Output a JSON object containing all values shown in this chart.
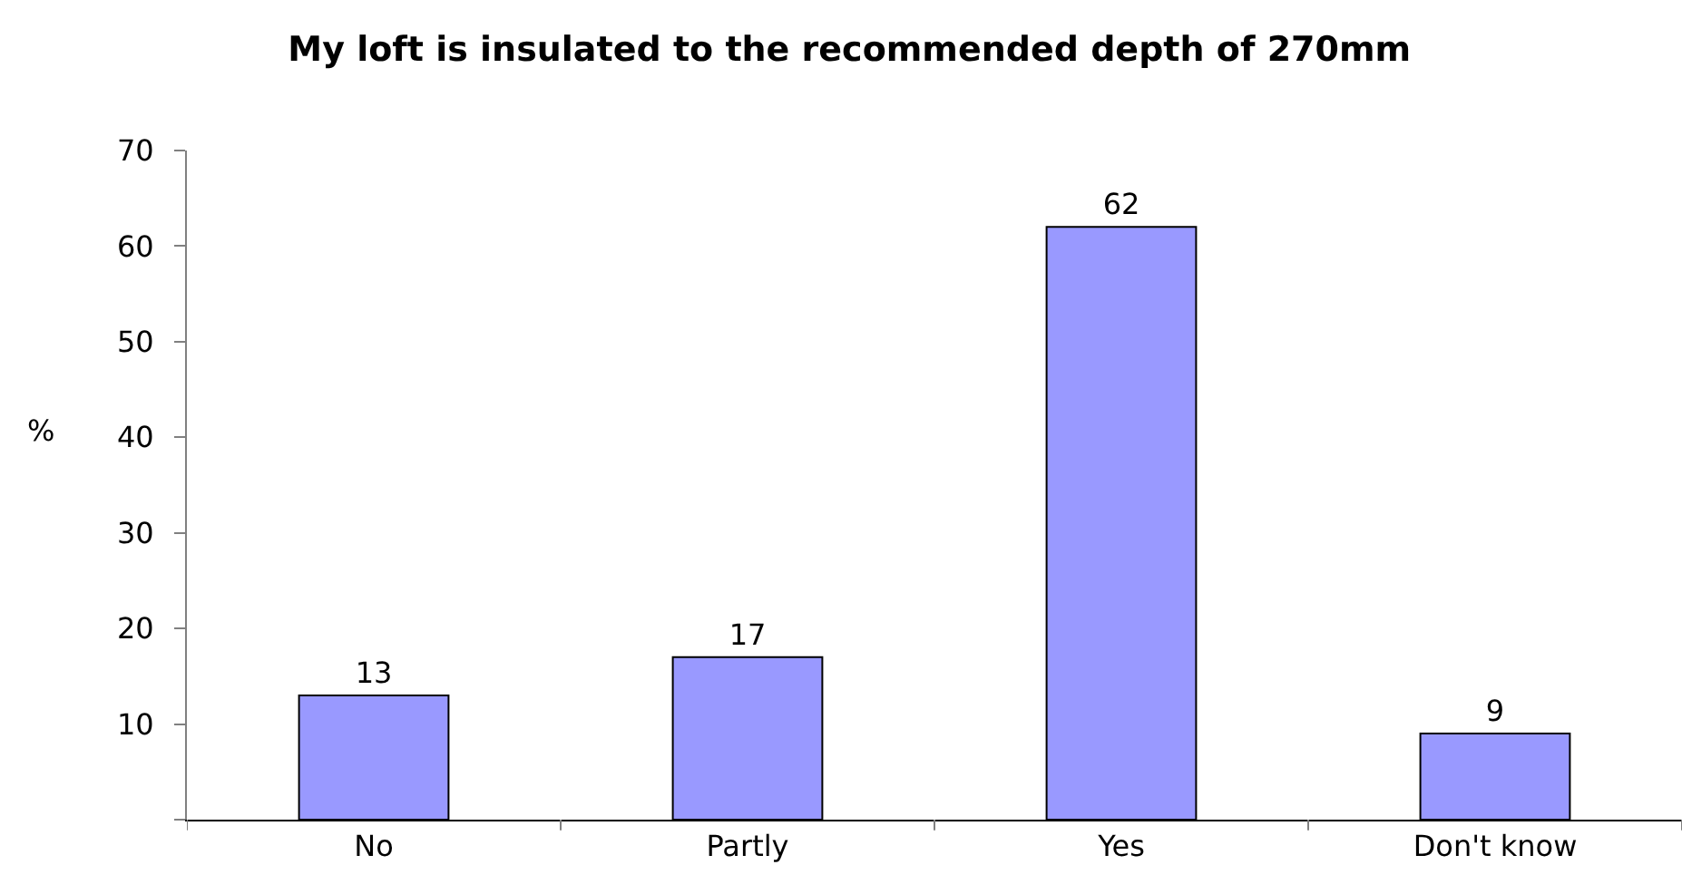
{
  "chart_data": {
    "type": "bar",
    "title": "My loft is insulated to the recommended depth of 270mm",
    "ylabel": "%",
    "categories": [
      "No",
      "Partly",
      "Yes",
      "Don't know"
    ],
    "values": [
      13,
      17,
      62,
      9
    ],
    "color": "#9999ff",
    "ylim": [
      0,
      70
    ],
    "yticks": [
      {
        "value": 0,
        "label": null
      },
      10,
      20,
      30,
      40,
      50,
      60,
      70
    ],
    "data_labels": true
  }
}
